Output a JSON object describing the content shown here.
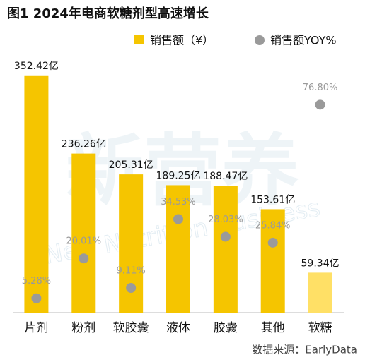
{
  "chart_data": {
    "type": "bar",
    "title": "图1 2024年电商软糖剂型高速增长",
    "categories": [
      "片剂",
      "粉剂",
      "软胶囊",
      "液体",
      "胶囊",
      "其他",
      "软糖"
    ],
    "series": [
      {
        "name": "销售额（¥）",
        "type": "bar",
        "color": "#f5c500",
        "colors": [
          "#f5c500",
          "#f5c500",
          "#f5c500",
          "#f5c500",
          "#f5c500",
          "#f5c500",
          "#ffe066"
        ],
        "values": [
          352.42,
          236.26,
          205.31,
          189.25,
          188.47,
          153.61,
          59.34
        ],
        "value_labels": [
          "352.42亿",
          "236.26亿",
          "205.31亿",
          "189.25亿",
          "188.47亿",
          "153.61亿",
          "59.34亿"
        ]
      },
      {
        "name": "销售额YOY%",
        "type": "scatter",
        "axis": "y2",
        "color": "#9a9a9a",
        "values": [
          5.28,
          20.01,
          9.11,
          34.53,
          28.03,
          25.84,
          76.8
        ],
        "value_labels": [
          "5.28%",
          "20.01%",
          "9.11%",
          "34.53%",
          "28.03%",
          "25.84%",
          "76.80%"
        ]
      }
    ],
    "ylim": [
      0,
      370
    ],
    "y2lim": [
      0,
      92
    ],
    "legend": "top-right",
    "source": "数据来源：EarlyData",
    "watermark": [
      "新营养",
      "New Nutrition Business"
    ]
  }
}
